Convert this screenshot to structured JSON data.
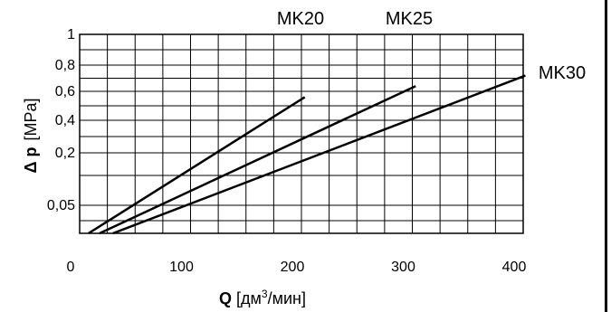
{
  "chart_data": {
    "type": "line",
    "title": "",
    "xlabel": {
      "bold": "Q",
      "unit_open": "[дм",
      "unit_sup": "3",
      "unit_close": "/мин]"
    },
    "ylabel": {
      "bold": "Δ p",
      "unit": "[MPa]"
    },
    "x_ticks": [
      "0",
      "100",
      "200",
      "300",
      "400"
    ],
    "y_ticks": [
      {
        "label": "1",
        "value": 1.0
      },
      {
        "label": "0,8",
        "value": 0.8
      },
      {
        "label": "0,6",
        "value": 0.6
      },
      {
        "label": "0,4",
        "value": 0.4
      },
      {
        "label": "0,2",
        "value": 0.2
      },
      {
        "label": "0,05",
        "value": 0.05
      }
    ],
    "y_grid_values": [
      1.0,
      0.9,
      0.8,
      0.7,
      0.6,
      0.5,
      0.4,
      0.3,
      0.2,
      0.1,
      0.05,
      0.02,
      0.01
    ],
    "xlim": [
      0,
      400
    ],
    "ylim": [
      0.01,
      1
    ],
    "grid": true,
    "series": [
      {
        "name": "MK20",
        "x": [
          8,
          203
        ],
        "y": [
          0.01,
          0.56
        ]
      },
      {
        "name": "MK25",
        "x": [
          18,
          303
        ],
        "y": [
          0.01,
          0.64
        ]
      },
      {
        "name": "MK30",
        "x": [
          30,
          402
        ],
        "y": [
          0.01,
          0.72
        ]
      }
    ]
  }
}
